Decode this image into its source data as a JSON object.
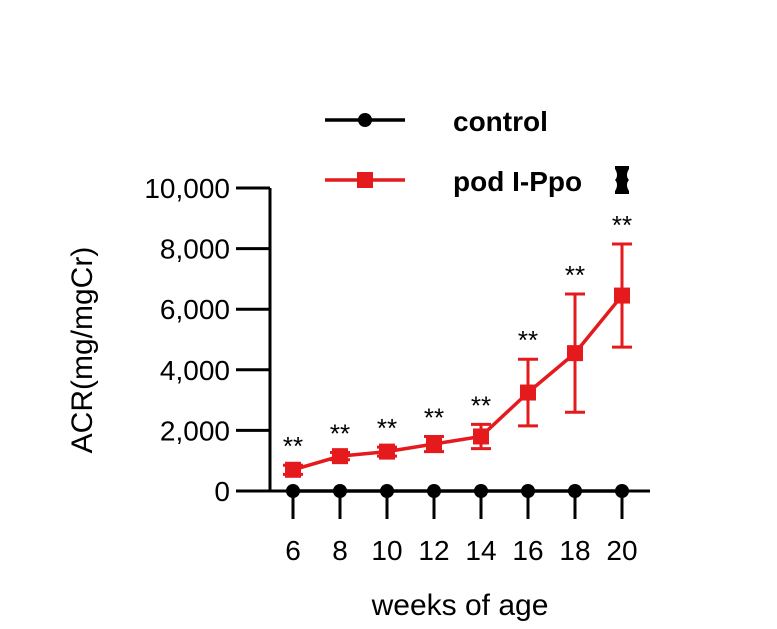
{
  "chart_data": {
    "type": "line",
    "title": "",
    "xlabel": "weeks of age",
    "ylabel": "ACR(mg/mgCr)",
    "x": [
      6,
      8,
      10,
      12,
      14,
      16,
      18,
      20
    ],
    "x_tick_labels": [
      "6",
      "8",
      "10",
      "12",
      "14",
      "16",
      "18",
      "20"
    ],
    "y_ticks": [
      0,
      2000,
      4000,
      6000,
      8000,
      10000
    ],
    "y_tick_labels": [
      "0",
      "2,000",
      "4,000",
      "6,000",
      "8,000",
      "10,000"
    ],
    "ylim": [
      0,
      10000
    ],
    "legend_position": "top-right",
    "series": [
      {
        "name": "control",
        "color": "#000000",
        "marker": "circle",
        "values": [
          0,
          0,
          0,
          0,
          0,
          0,
          0,
          0
        ],
        "error": [
          0,
          0,
          0,
          0,
          0,
          0,
          0,
          0
        ]
      },
      {
        "name": "pod I-Ppo",
        "color": "#e41a1c",
        "marker": "square",
        "values": [
          700,
          1150,
          1300,
          1550,
          1800,
          3250,
          4550,
          6450
        ],
        "error": [
          150,
          120,
          150,
          250,
          400,
          1100,
          1950,
          1700
        ]
      }
    ],
    "annotations": [
      {
        "x": 6,
        "text": "**"
      },
      {
        "x": 8,
        "text": "**"
      },
      {
        "x": 10,
        "text": "**"
      },
      {
        "x": 12,
        "text": "**"
      },
      {
        "x": 14,
        "text": "**"
      },
      {
        "x": 16,
        "text": "**"
      },
      {
        "x": 18,
        "text": "**"
      },
      {
        "x": 20,
        "text": "**"
      }
    ],
    "legend_icon": "chromosome-icon"
  }
}
